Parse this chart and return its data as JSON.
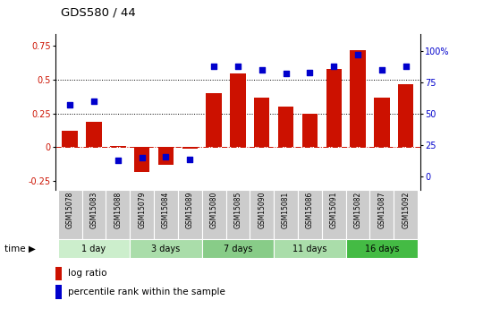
{
  "title": "GDS580 / 44",
  "samples": [
    "GSM15078",
    "GSM15083",
    "GSM15088",
    "GSM15079",
    "GSM15084",
    "GSM15089",
    "GSM15080",
    "GSM15085",
    "GSM15090",
    "GSM15081",
    "GSM15086",
    "GSM15091",
    "GSM15082",
    "GSM15087",
    "GSM15092"
  ],
  "log_ratio": [
    0.12,
    0.185,
    0.01,
    -0.185,
    -0.13,
    -0.01,
    0.4,
    0.55,
    0.37,
    0.3,
    0.25,
    0.58,
    0.72,
    0.37,
    0.47
  ],
  "pct_rank": [
    57,
    60,
    13,
    15,
    16,
    14,
    88,
    88,
    85,
    82,
    83,
    88,
    97,
    85,
    88
  ],
  "groups": [
    {
      "label": "1 day",
      "start": 0,
      "end": 3,
      "color": "#cceecc"
    },
    {
      "label": "3 days",
      "start": 3,
      "end": 6,
      "color": "#aaddaa"
    },
    {
      "label": "7 days",
      "start": 6,
      "end": 9,
      "color": "#88cc88"
    },
    {
      "label": "11 days",
      "start": 9,
      "end": 12,
      "color": "#aaddaa"
    },
    {
      "label": "16 days",
      "start": 12,
      "end": 15,
      "color": "#44bb44"
    }
  ],
  "bar_color": "#cc1100",
  "dot_color": "#0000cc",
  "ylim_left": [
    -0.32,
    0.84
  ],
  "ylim_right": [
    -10.67,
    113.33
  ],
  "yticks_left": [
    -0.25,
    0.0,
    0.25,
    0.5,
    0.75
  ],
  "ytick_labels_left": [
    "-0.25",
    "0",
    "0.25",
    "0.5",
    "0.75"
  ],
  "yticks_right": [
    0,
    25,
    50,
    75,
    100
  ],
  "ytick_labels_right": [
    "0",
    "25",
    "50",
    "75",
    "100%"
  ],
  "hlines": [
    0.25,
    0.5
  ],
  "bg_color": "#ffffff",
  "sample_box_color": "#cccccc",
  "legend_log_ratio": "log ratio",
  "legend_pct": "percentile rank within the sample",
  "time_label": "time"
}
